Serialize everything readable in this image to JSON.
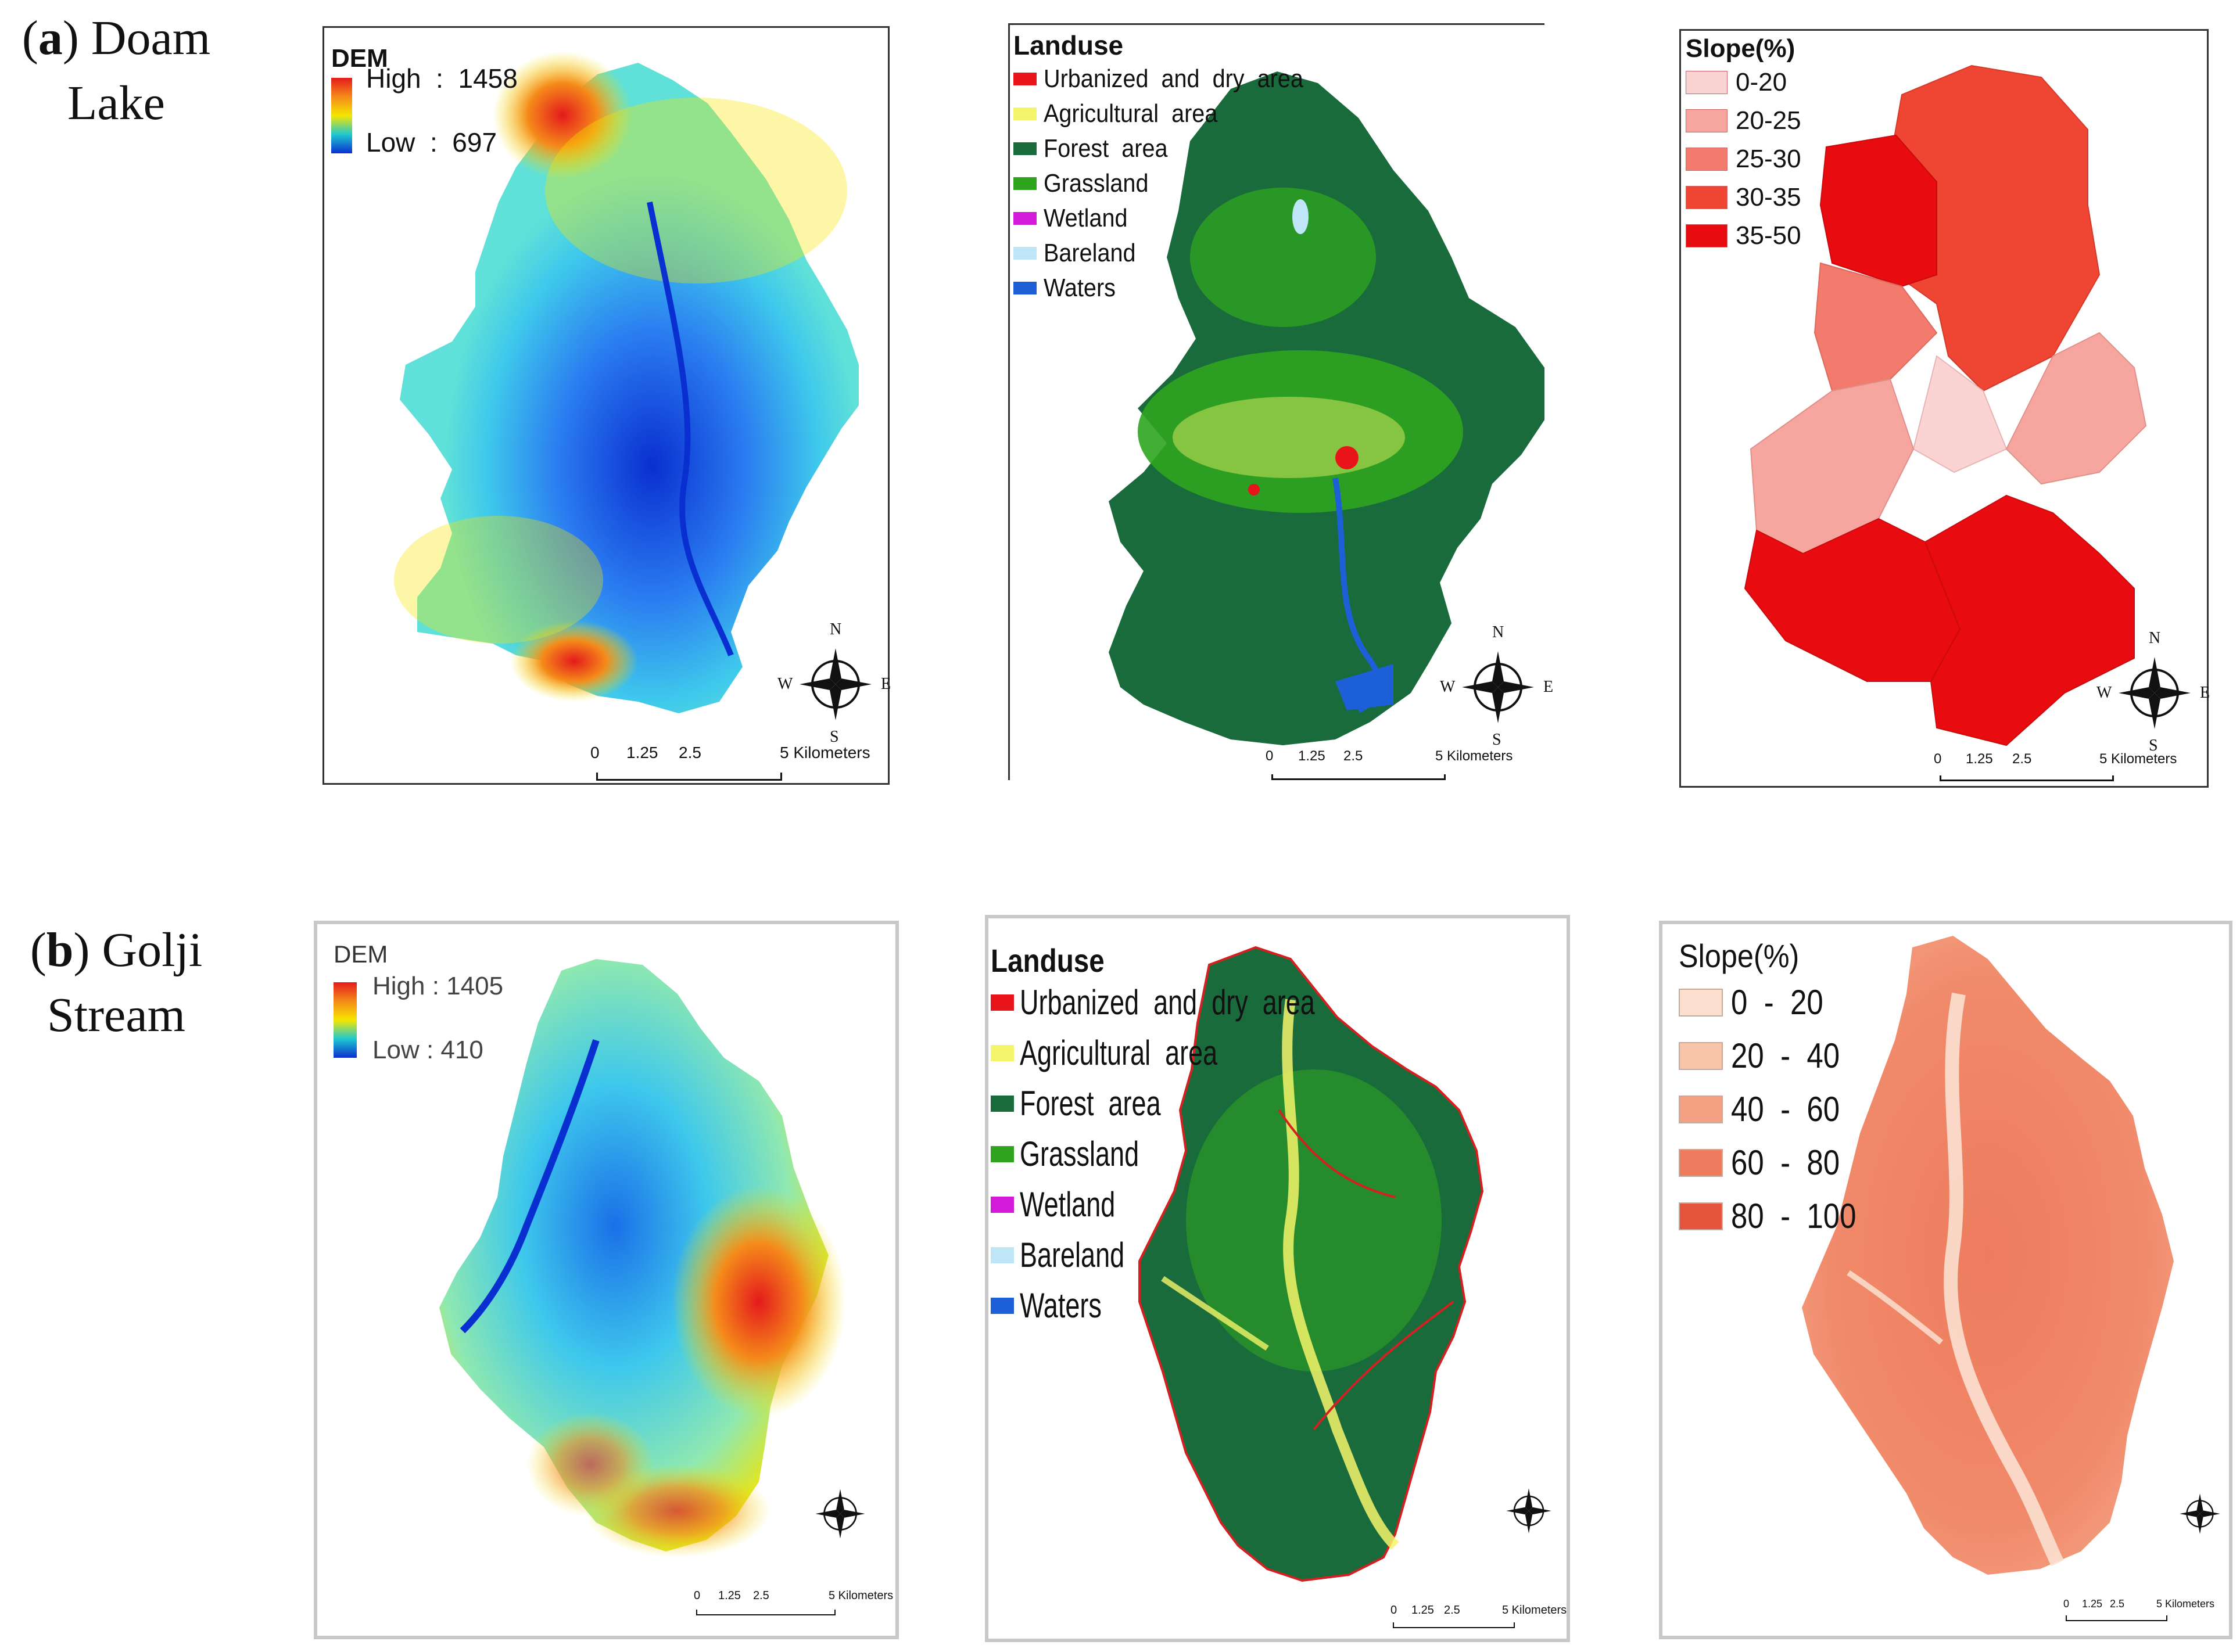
{
  "rows": [
    {
      "letter": "a",
      "name_line1": ") Doam",
      "name_line2": "Lake",
      "dem": {
        "title": "DEM",
        "high_label": "High",
        "high_value": "1458",
        "low_label": "Low",
        "low_value": "697"
      },
      "landuse": {
        "title": "Landuse",
        "items": [
          {
            "label": "Urbanized  and  dry  area",
            "color": "#e8141a"
          },
          {
            "label": "Agricultural  area",
            "color": "#f4f56a"
          },
          {
            "label": "Forest  area",
            "color": "#1a6b3c"
          },
          {
            "label": "Grassland",
            "color": "#2fa51f"
          },
          {
            "label": "Wetland",
            "color": "#d21ad8"
          },
          {
            "label": "Bareland",
            "color": "#bfe6f6"
          },
          {
            "label": "Waters",
            "color": "#1c5fd6"
          }
        ]
      },
      "slope": {
        "title": "Slope(%)",
        "items": [
          {
            "label": "0-20",
            "color": "#fbd3d3"
          },
          {
            "label": "20-25",
            "color": "#f6a69e"
          },
          {
            "label": "25-30",
            "color": "#f27b6e"
          },
          {
            "label": "30-35",
            "color": "#ee4633"
          },
          {
            "label": "35-50",
            "color": "#e80c10"
          }
        ]
      }
    },
    {
      "letter": "b",
      "name_line1": ") Golji",
      "name_line2": "Stream",
      "dem": {
        "title": "DEM",
        "high_label": "High",
        "high_value": ": 1405",
        "low_label": "Low",
        "low_value": ": 410"
      },
      "landuse": {
        "title": "Landuse",
        "items": [
          {
            "label": "Urbanized  and  dry  area",
            "color": "#e8141a"
          },
          {
            "label": "Agricultural  area",
            "color": "#f4f56a"
          },
          {
            "label": "Forest  area",
            "color": "#1a6b3c"
          },
          {
            "label": "Grassland",
            "color": "#2fa51f"
          },
          {
            "label": "Wetland",
            "color": "#d21ad8"
          },
          {
            "label": "Bareland",
            "color": "#bfe6f6"
          },
          {
            "label": "Waters",
            "color": "#1c5fd6"
          }
        ]
      },
      "slope": {
        "title": "Slope(%)",
        "items": [
          {
            "label": "0  -  20",
            "color": "#fbe0d0"
          },
          {
            "label": "20  -  40",
            "color": "#f8c4aa"
          },
          {
            "label": "40  -  60",
            "color": "#f4a083"
          },
          {
            "label": "60  -  80",
            "color": "#ee7b5e"
          },
          {
            "label": "80  -  100",
            "color": "#e4533c"
          }
        ]
      }
    }
  ],
  "scalebar": {
    "t0": "0",
    "t1": "1.25",
    "t2": "2.5",
    "t3": "5 Kilometers"
  },
  "compass": {
    "n": "N",
    "s": "S",
    "e": "E",
    "w": "W"
  },
  "dem_colors": {
    "high": "#e41a1c",
    "mid": "#f5e600",
    "low": "#0a2fd0"
  }
}
